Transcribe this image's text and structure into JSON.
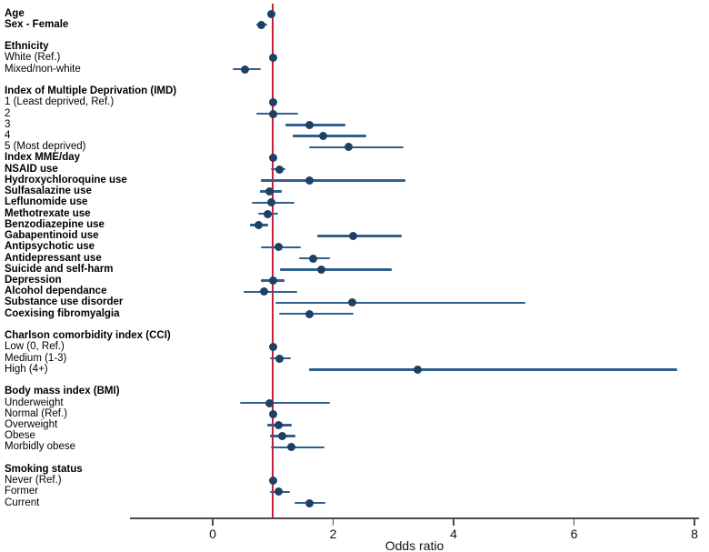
{
  "chart_data": {
    "type": "scatter",
    "subtype": "forest-plot",
    "title": "",
    "xlabel": "Odds ratio",
    "ylabel": "",
    "x_ticks": [
      0,
      2,
      4,
      6,
      8
    ],
    "xlim": [
      -1.4,
      8.1
    ],
    "reference_line_x": 1,
    "grid": false,
    "legend": "none",
    "colors": {
      "marker": "#1d4164",
      "ci_line": "#2f5f8e",
      "ref_line": "#c4203a",
      "axis": "#4a4a4a",
      "text": "#000000",
      "background": "#ffffff"
    },
    "rows": [
      {
        "label": "Age",
        "bold": true,
        "or": 0.97,
        "lo": 0.94,
        "hi": 1.01
      },
      {
        "label": "Sex - Female",
        "bold": true,
        "or": 0.8,
        "lo": 0.72,
        "hi": 0.9
      },
      {
        "label": ""
      },
      {
        "label": "Ethnicity",
        "bold": true
      },
      {
        "label": "White (Ref.)",
        "or": 1.0,
        "ref": true
      },
      {
        "label": "Mixed/non-white",
        "or": 0.53,
        "lo": 0.33,
        "hi": 0.8
      },
      {
        "label": ""
      },
      {
        "label": "Index of Multiple Deprivation (IMD)",
        "bold": true
      },
      {
        "label": "1 (Least deprived, Ref.)",
        "or": 1.0,
        "ref": true
      },
      {
        "label": "2",
        "or": 1.01,
        "lo": 0.72,
        "hi": 1.42
      },
      {
        "label": "3",
        "or": 1.6,
        "lo": 1.21,
        "hi": 2.2
      },
      {
        "label": "4",
        "or": 1.83,
        "lo": 1.33,
        "hi": 2.55
      },
      {
        "label": "5 (Most deprived)",
        "or": 2.25,
        "lo": 1.6,
        "hi": 3.17
      },
      {
        "label": "Index MME/day",
        "bold": true,
        "or": 1.01,
        "lo": 0.97,
        "hi": 1.06
      },
      {
        "label": "NSAID use",
        "bold": true,
        "or": 1.11,
        "lo": 0.96,
        "hi": 1.21
      },
      {
        "label": "Hydroxychloroquine use",
        "bold": true,
        "or": 1.6,
        "lo": 0.8,
        "hi": 3.2
      },
      {
        "label": "Sulfasalazine use",
        "bold": true,
        "or": 0.94,
        "lo": 0.78,
        "hi": 1.15
      },
      {
        "label": "Leflunomide use",
        "bold": true,
        "or": 0.98,
        "lo": 0.65,
        "hi": 1.36
      },
      {
        "label": "Methotrexate use",
        "bold": true,
        "or": 0.92,
        "lo": 0.76,
        "hi": 1.09
      },
      {
        "label": "Benzodiazepine use",
        "bold": true,
        "or": 0.76,
        "lo": 0.62,
        "hi": 0.92
      },
      {
        "label": "Gabapentinoid use",
        "bold": true,
        "or": 2.33,
        "lo": 1.73,
        "hi": 3.14
      },
      {
        "label": "Antipsychotic use",
        "bold": true,
        "or": 1.09,
        "lo": 0.8,
        "hi": 1.46
      },
      {
        "label": "Antidepressant use",
        "bold": true,
        "or": 1.67,
        "lo": 1.43,
        "hi": 1.95
      },
      {
        "label": "Suicide and self-harm",
        "bold": true,
        "or": 1.81,
        "lo": 1.12,
        "hi": 2.98
      },
      {
        "label": "Depression",
        "bold": true,
        "or": 1.0,
        "lo": 0.8,
        "hi": 1.19
      },
      {
        "label": "Alcohol dependance",
        "bold": true,
        "or": 0.85,
        "lo": 0.51,
        "hi": 1.4
      },
      {
        "label": "Substance use disorder",
        "bold": true,
        "or": 2.31,
        "lo": 1.04,
        "hi": 5.19
      },
      {
        "label": "Coexising fibromyalgia",
        "bold": true,
        "or": 1.6,
        "lo": 1.1,
        "hi": 2.34
      },
      {
        "label": ""
      },
      {
        "label": "Charlson comorbidity index (CCI)",
        "bold": true
      },
      {
        "label": "Low (0, Ref.)",
        "or": 1.0,
        "ref": true
      },
      {
        "label": "Medium (1-3)",
        "or": 1.11,
        "lo": 0.95,
        "hi": 1.3
      },
      {
        "label": "High (4+)",
        "or": 3.41,
        "lo": 1.6,
        "hi": 7.71
      },
      {
        "label": ""
      },
      {
        "label": "Body mass index (BMI)",
        "bold": true
      },
      {
        "label": "Underweight",
        "or": 0.95,
        "lo": 0.45,
        "hi": 1.95
      },
      {
        "label": "Normal (Ref.)",
        "or": 1.0,
        "ref": true
      },
      {
        "label": "Overweight",
        "or": 1.09,
        "lo": 0.9,
        "hi": 1.31
      },
      {
        "label": "Obese",
        "or": 1.15,
        "lo": 0.95,
        "hi": 1.38
      },
      {
        "label": "Morbidly obese",
        "or": 1.31,
        "lo": 0.97,
        "hi": 1.85
      },
      {
        "label": ""
      },
      {
        "label": "Smoking status",
        "bold": true
      },
      {
        "label": "Never (Ref.)",
        "or": 1.0,
        "ref": true
      },
      {
        "label": "Former",
        "or": 1.1,
        "lo": 0.95,
        "hi": 1.28
      },
      {
        "label": "Current",
        "or": 1.6,
        "lo": 1.36,
        "hi": 1.87
      }
    ]
  }
}
